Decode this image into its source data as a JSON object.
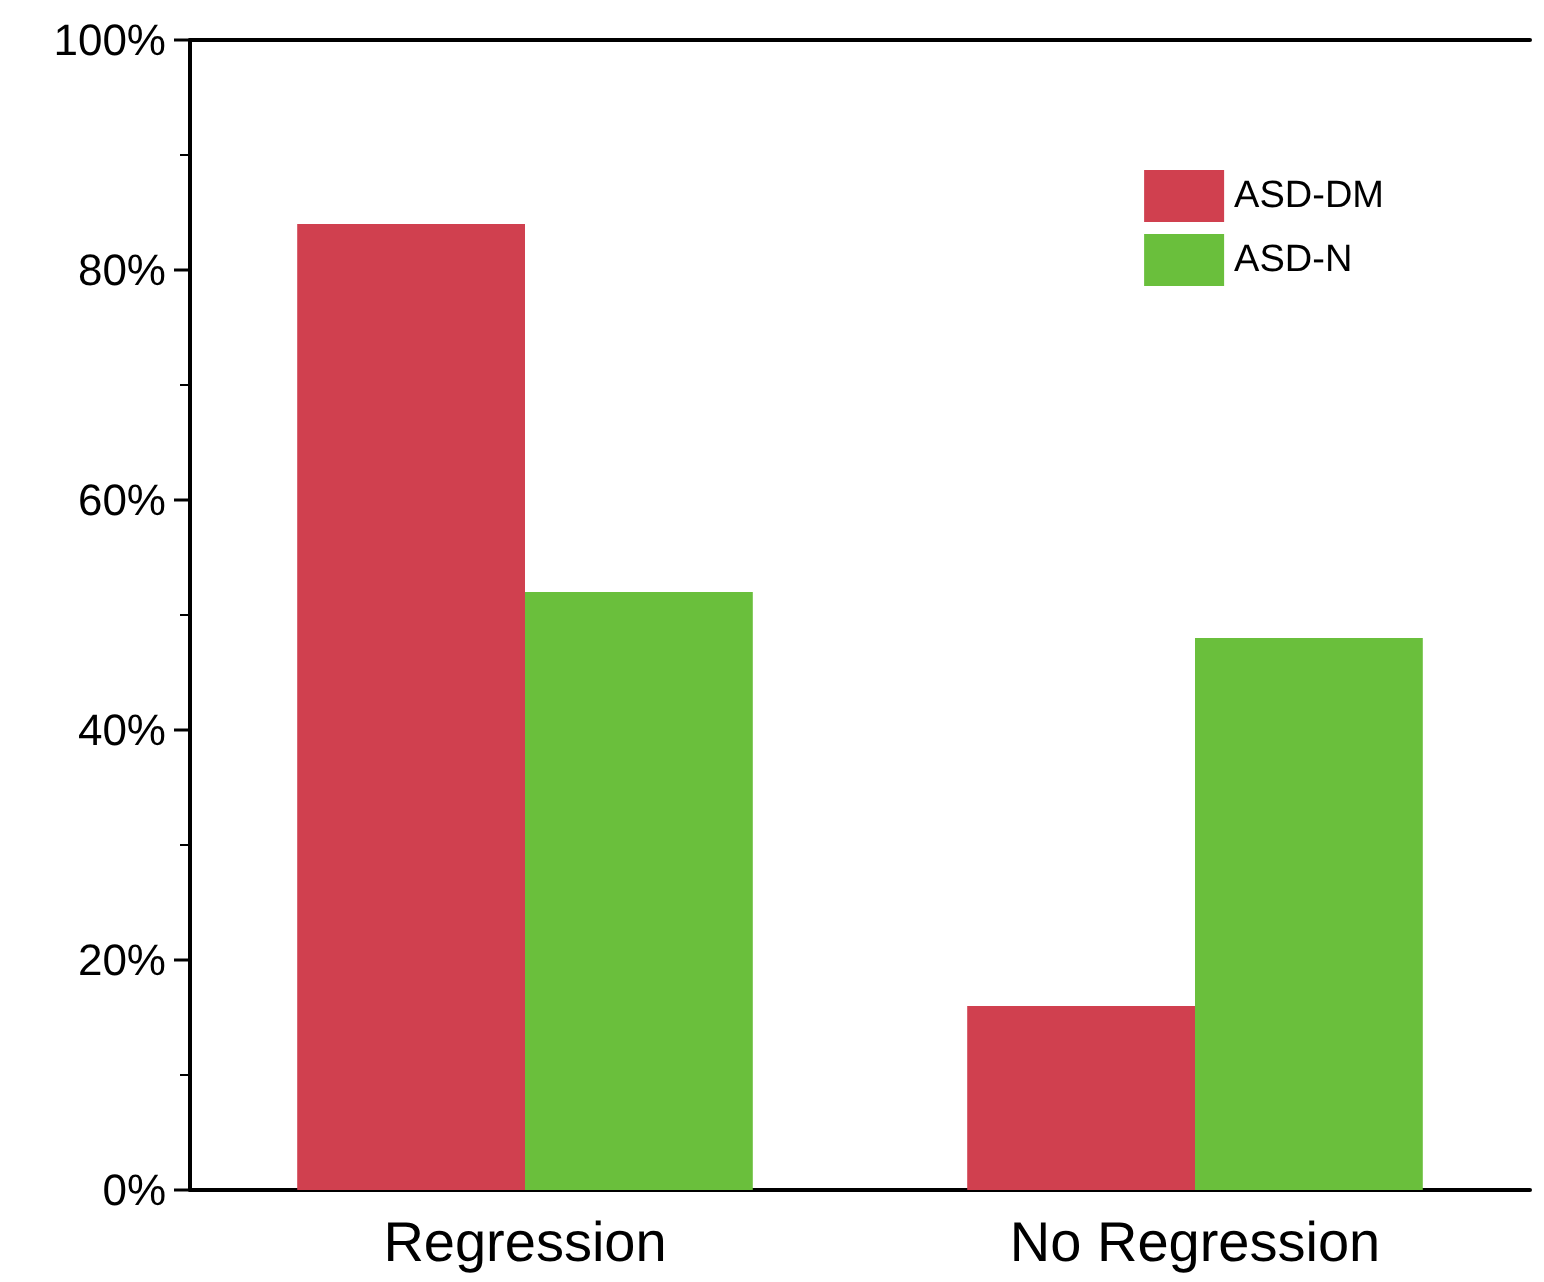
{
  "chart_data": {
    "type": "bar",
    "categories": [
      "Regression",
      "No Regression"
    ],
    "series": [
      {
        "name": "ASD-DM",
        "color": "#d0404f",
        "values": [
          84,
          16
        ]
      },
      {
        "name": "ASD-N",
        "color": "#6abf3c",
        "values": [
          52,
          48
        ]
      }
    ],
    "ylim": [
      0,
      100
    ],
    "yticks": [
      {
        "value": 0,
        "label": "0%"
      },
      {
        "value": 20,
        "label": "20%"
      },
      {
        "value": 40,
        "label": "40%"
      },
      {
        "value": 60,
        "label": "60%"
      },
      {
        "value": 80,
        "label": "80%"
      },
      {
        "value": 100,
        "label": "100%"
      }
    ],
    "grid": false,
    "legend": "top right"
  }
}
